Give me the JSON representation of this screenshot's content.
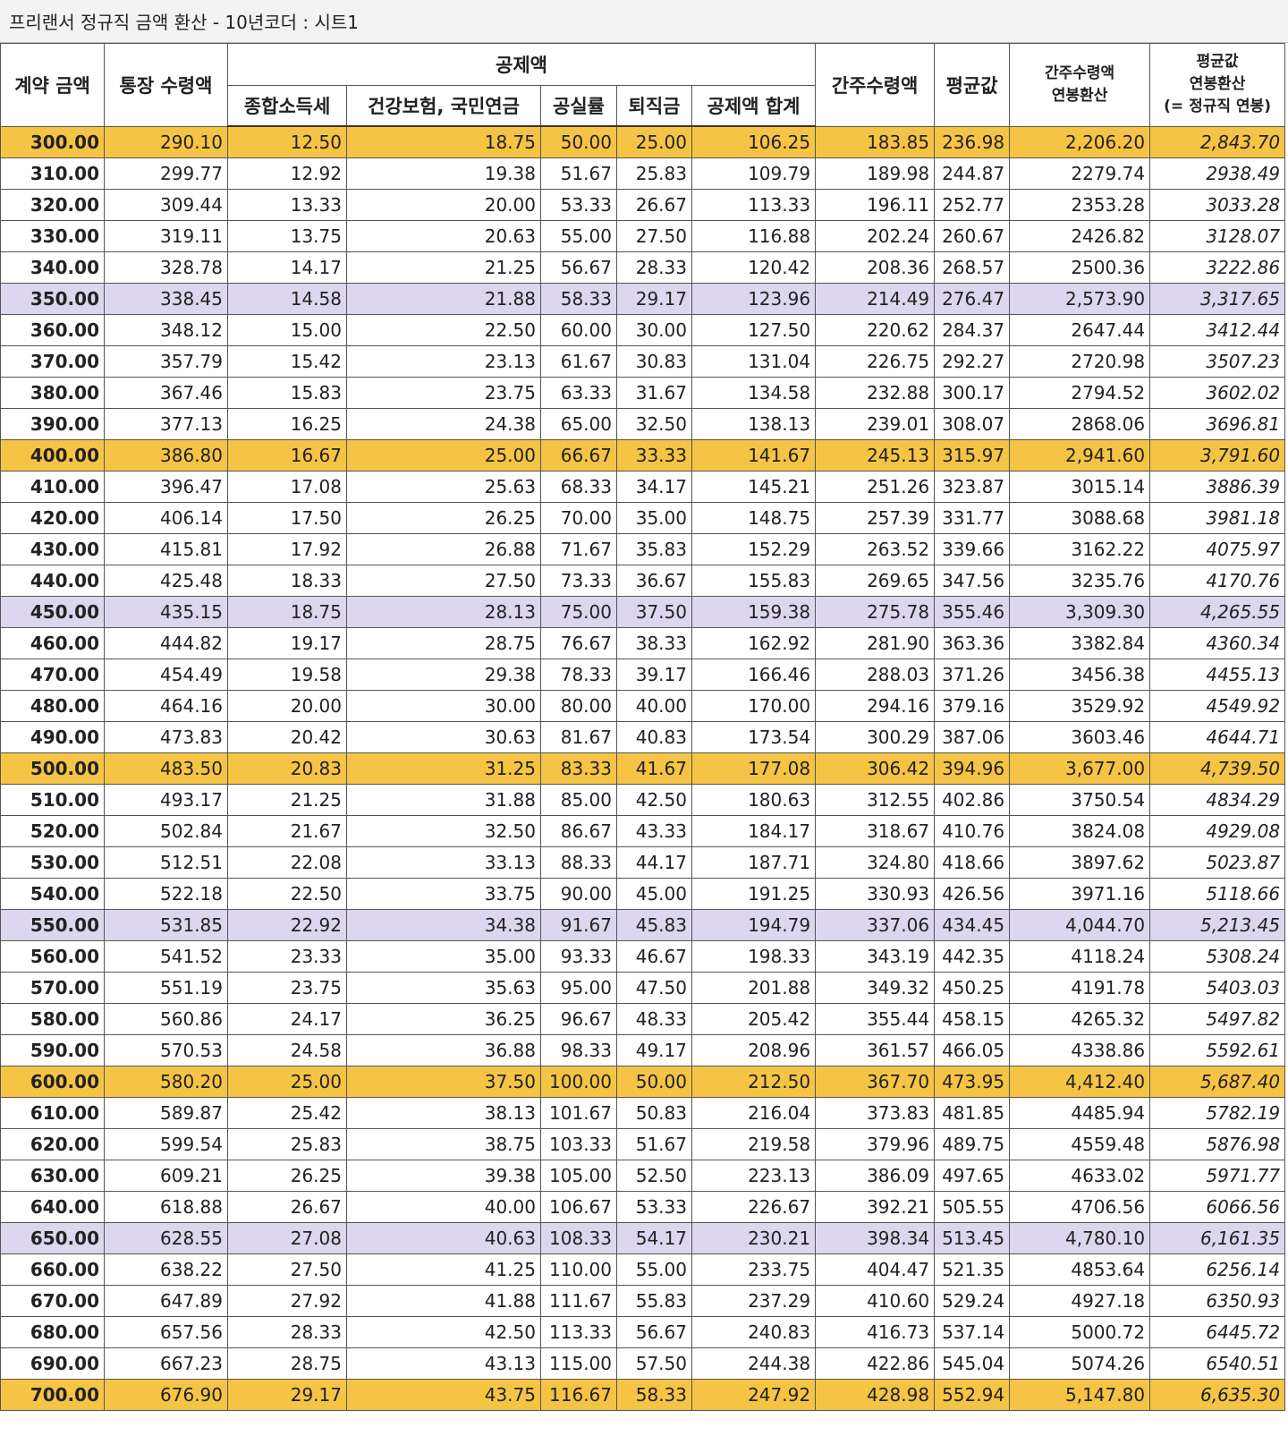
{
  "title": "프리랜서 정규직 금액 환산 - 10년코더 : 시트1",
  "table": {
    "group": "공제액",
    "columns": [
      {
        "lines": [
          "계약 금액"
        ]
      },
      {
        "lines": [
          "통장 수령액"
        ]
      },
      {
        "lines": [
          "종합소득세"
        ]
      },
      {
        "lines": [
          "건강보험, 국민연금"
        ]
      },
      {
        "lines": [
          "공실률"
        ]
      },
      {
        "lines": [
          "퇴직금"
        ]
      },
      {
        "lines": [
          "공제액 합계"
        ]
      },
      {
        "lines": [
          "간주수령액"
        ]
      },
      {
        "lines": [
          "평균값"
        ]
      },
      {
        "lines": [
          "간주수령액",
          "연봉환산"
        ]
      },
      {
        "lines": [
          "평균값",
          "연봉환산",
          "(= 정규직 연봉)"
        ]
      }
    ],
    "rows": [
      [
        "300.00",
        "290.10",
        "12.50",
        "18.75",
        "50.00",
        "25.00",
        "106.25",
        "183.85",
        "236.98",
        "2,206.20",
        "2,843.70"
      ],
      [
        "310.00",
        "299.77",
        "12.92",
        "19.38",
        "51.67",
        "25.83",
        "109.79",
        "189.98",
        "244.87",
        "2279.74",
        "2938.49"
      ],
      [
        "320.00",
        "309.44",
        "13.33",
        "20.00",
        "53.33",
        "26.67",
        "113.33",
        "196.11",
        "252.77",
        "2353.28",
        "3033.28"
      ],
      [
        "330.00",
        "319.11",
        "13.75",
        "20.63",
        "55.00",
        "27.50",
        "116.88",
        "202.24",
        "260.67",
        "2426.82",
        "3128.07"
      ],
      [
        "340.00",
        "328.78",
        "14.17",
        "21.25",
        "56.67",
        "28.33",
        "120.42",
        "208.36",
        "268.57",
        "2500.36",
        "3222.86"
      ],
      [
        "350.00",
        "338.45",
        "14.58",
        "21.88",
        "58.33",
        "29.17",
        "123.96",
        "214.49",
        "276.47",
        "2,573.90",
        "3,317.65"
      ],
      [
        "360.00",
        "348.12",
        "15.00",
        "22.50",
        "60.00",
        "30.00",
        "127.50",
        "220.62",
        "284.37",
        "2647.44",
        "3412.44"
      ],
      [
        "370.00",
        "357.79",
        "15.42",
        "23.13",
        "61.67",
        "30.83",
        "131.04",
        "226.75",
        "292.27",
        "2720.98",
        "3507.23"
      ],
      [
        "380.00",
        "367.46",
        "15.83",
        "23.75",
        "63.33",
        "31.67",
        "134.58",
        "232.88",
        "300.17",
        "2794.52",
        "3602.02"
      ],
      [
        "390.00",
        "377.13",
        "16.25",
        "24.38",
        "65.00",
        "32.50",
        "138.13",
        "239.01",
        "308.07",
        "2868.06",
        "3696.81"
      ],
      [
        "400.00",
        "386.80",
        "16.67",
        "25.00",
        "66.67",
        "33.33",
        "141.67",
        "245.13",
        "315.97",
        "2,941.60",
        "3,791.60"
      ],
      [
        "410.00",
        "396.47",
        "17.08",
        "25.63",
        "68.33",
        "34.17",
        "145.21",
        "251.26",
        "323.87",
        "3015.14",
        "3886.39"
      ],
      [
        "420.00",
        "406.14",
        "17.50",
        "26.25",
        "70.00",
        "35.00",
        "148.75",
        "257.39",
        "331.77",
        "3088.68",
        "3981.18"
      ],
      [
        "430.00",
        "415.81",
        "17.92",
        "26.88",
        "71.67",
        "35.83",
        "152.29",
        "263.52",
        "339.66",
        "3162.22",
        "4075.97"
      ],
      [
        "440.00",
        "425.48",
        "18.33",
        "27.50",
        "73.33",
        "36.67",
        "155.83",
        "269.65",
        "347.56",
        "3235.76",
        "4170.76"
      ],
      [
        "450.00",
        "435.15",
        "18.75",
        "28.13",
        "75.00",
        "37.50",
        "159.38",
        "275.78",
        "355.46",
        "3,309.30",
        "4,265.55"
      ],
      [
        "460.00",
        "444.82",
        "19.17",
        "28.75",
        "76.67",
        "38.33",
        "162.92",
        "281.90",
        "363.36",
        "3382.84",
        "4360.34"
      ],
      [
        "470.00",
        "454.49",
        "19.58",
        "29.38",
        "78.33",
        "39.17",
        "166.46",
        "288.03",
        "371.26",
        "3456.38",
        "4455.13"
      ],
      [
        "480.00",
        "464.16",
        "20.00",
        "30.00",
        "80.00",
        "40.00",
        "170.00",
        "294.16",
        "379.16",
        "3529.92",
        "4549.92"
      ],
      [
        "490.00",
        "473.83",
        "20.42",
        "30.63",
        "81.67",
        "40.83",
        "173.54",
        "300.29",
        "387.06",
        "3603.46",
        "4644.71"
      ],
      [
        "500.00",
        "483.50",
        "20.83",
        "31.25",
        "83.33",
        "41.67",
        "177.08",
        "306.42",
        "394.96",
        "3,677.00",
        "4,739.50"
      ],
      [
        "510.00",
        "493.17",
        "21.25",
        "31.88",
        "85.00",
        "42.50",
        "180.63",
        "312.55",
        "402.86",
        "3750.54",
        "4834.29"
      ],
      [
        "520.00",
        "502.84",
        "21.67",
        "32.50",
        "86.67",
        "43.33",
        "184.17",
        "318.67",
        "410.76",
        "3824.08",
        "4929.08"
      ],
      [
        "530.00",
        "512.51",
        "22.08",
        "33.13",
        "88.33",
        "44.17",
        "187.71",
        "324.80",
        "418.66",
        "3897.62",
        "5023.87"
      ],
      [
        "540.00",
        "522.18",
        "22.50",
        "33.75",
        "90.00",
        "45.00",
        "191.25",
        "330.93",
        "426.56",
        "3971.16",
        "5118.66"
      ],
      [
        "550.00",
        "531.85",
        "22.92",
        "34.38",
        "91.67",
        "45.83",
        "194.79",
        "337.06",
        "434.45",
        "4,044.70",
        "5,213.45"
      ],
      [
        "560.00",
        "541.52",
        "23.33",
        "35.00",
        "93.33",
        "46.67",
        "198.33",
        "343.19",
        "442.35",
        "4118.24",
        "5308.24"
      ],
      [
        "570.00",
        "551.19",
        "23.75",
        "35.63",
        "95.00",
        "47.50",
        "201.88",
        "349.32",
        "450.25",
        "4191.78",
        "5403.03"
      ],
      [
        "580.00",
        "560.86",
        "24.17",
        "36.25",
        "96.67",
        "48.33",
        "205.42",
        "355.44",
        "458.15",
        "4265.32",
        "5497.82"
      ],
      [
        "590.00",
        "570.53",
        "24.58",
        "36.88",
        "98.33",
        "49.17",
        "208.96",
        "361.57",
        "466.05",
        "4338.86",
        "5592.61"
      ],
      [
        "600.00",
        "580.20",
        "25.00",
        "37.50",
        "100.00",
        "50.00",
        "212.50",
        "367.70",
        "473.95",
        "4,412.40",
        "5,687.40"
      ],
      [
        "610.00",
        "589.87",
        "25.42",
        "38.13",
        "101.67",
        "50.83",
        "216.04",
        "373.83",
        "481.85",
        "4485.94",
        "5782.19"
      ],
      [
        "620.00",
        "599.54",
        "25.83",
        "38.75",
        "103.33",
        "51.67",
        "219.58",
        "379.96",
        "489.75",
        "4559.48",
        "5876.98"
      ],
      [
        "630.00",
        "609.21",
        "26.25",
        "39.38",
        "105.00",
        "52.50",
        "223.13",
        "386.09",
        "497.65",
        "4633.02",
        "5971.77"
      ],
      [
        "640.00",
        "618.88",
        "26.67",
        "40.00",
        "106.67",
        "53.33",
        "226.67",
        "392.21",
        "505.55",
        "4706.56",
        "6066.56"
      ],
      [
        "650.00",
        "628.55",
        "27.08",
        "40.63",
        "108.33",
        "54.17",
        "230.21",
        "398.34",
        "513.45",
        "4,780.10",
        "6,161.35"
      ],
      [
        "660.00",
        "638.22",
        "27.50",
        "41.25",
        "110.00",
        "55.00",
        "233.75",
        "404.47",
        "521.35",
        "4853.64",
        "6256.14"
      ],
      [
        "670.00",
        "647.89",
        "27.92",
        "41.88",
        "111.67",
        "55.83",
        "237.29",
        "410.60",
        "529.24",
        "4927.18",
        "6350.93"
      ],
      [
        "680.00",
        "657.56",
        "28.33",
        "42.50",
        "113.33",
        "56.67",
        "240.83",
        "416.73",
        "537.14",
        "5000.72",
        "6445.72"
      ],
      [
        "690.00",
        "667.23",
        "28.75",
        "43.13",
        "115.00",
        "57.50",
        "244.38",
        "422.86",
        "545.04",
        "5074.26",
        "6540.51"
      ],
      [
        "700.00",
        "676.90",
        "29.17",
        "43.75",
        "116.67",
        "58.33",
        "247.92",
        "428.98",
        "552.94",
        "5,147.80",
        "6,635.30"
      ]
    ]
  }
}
